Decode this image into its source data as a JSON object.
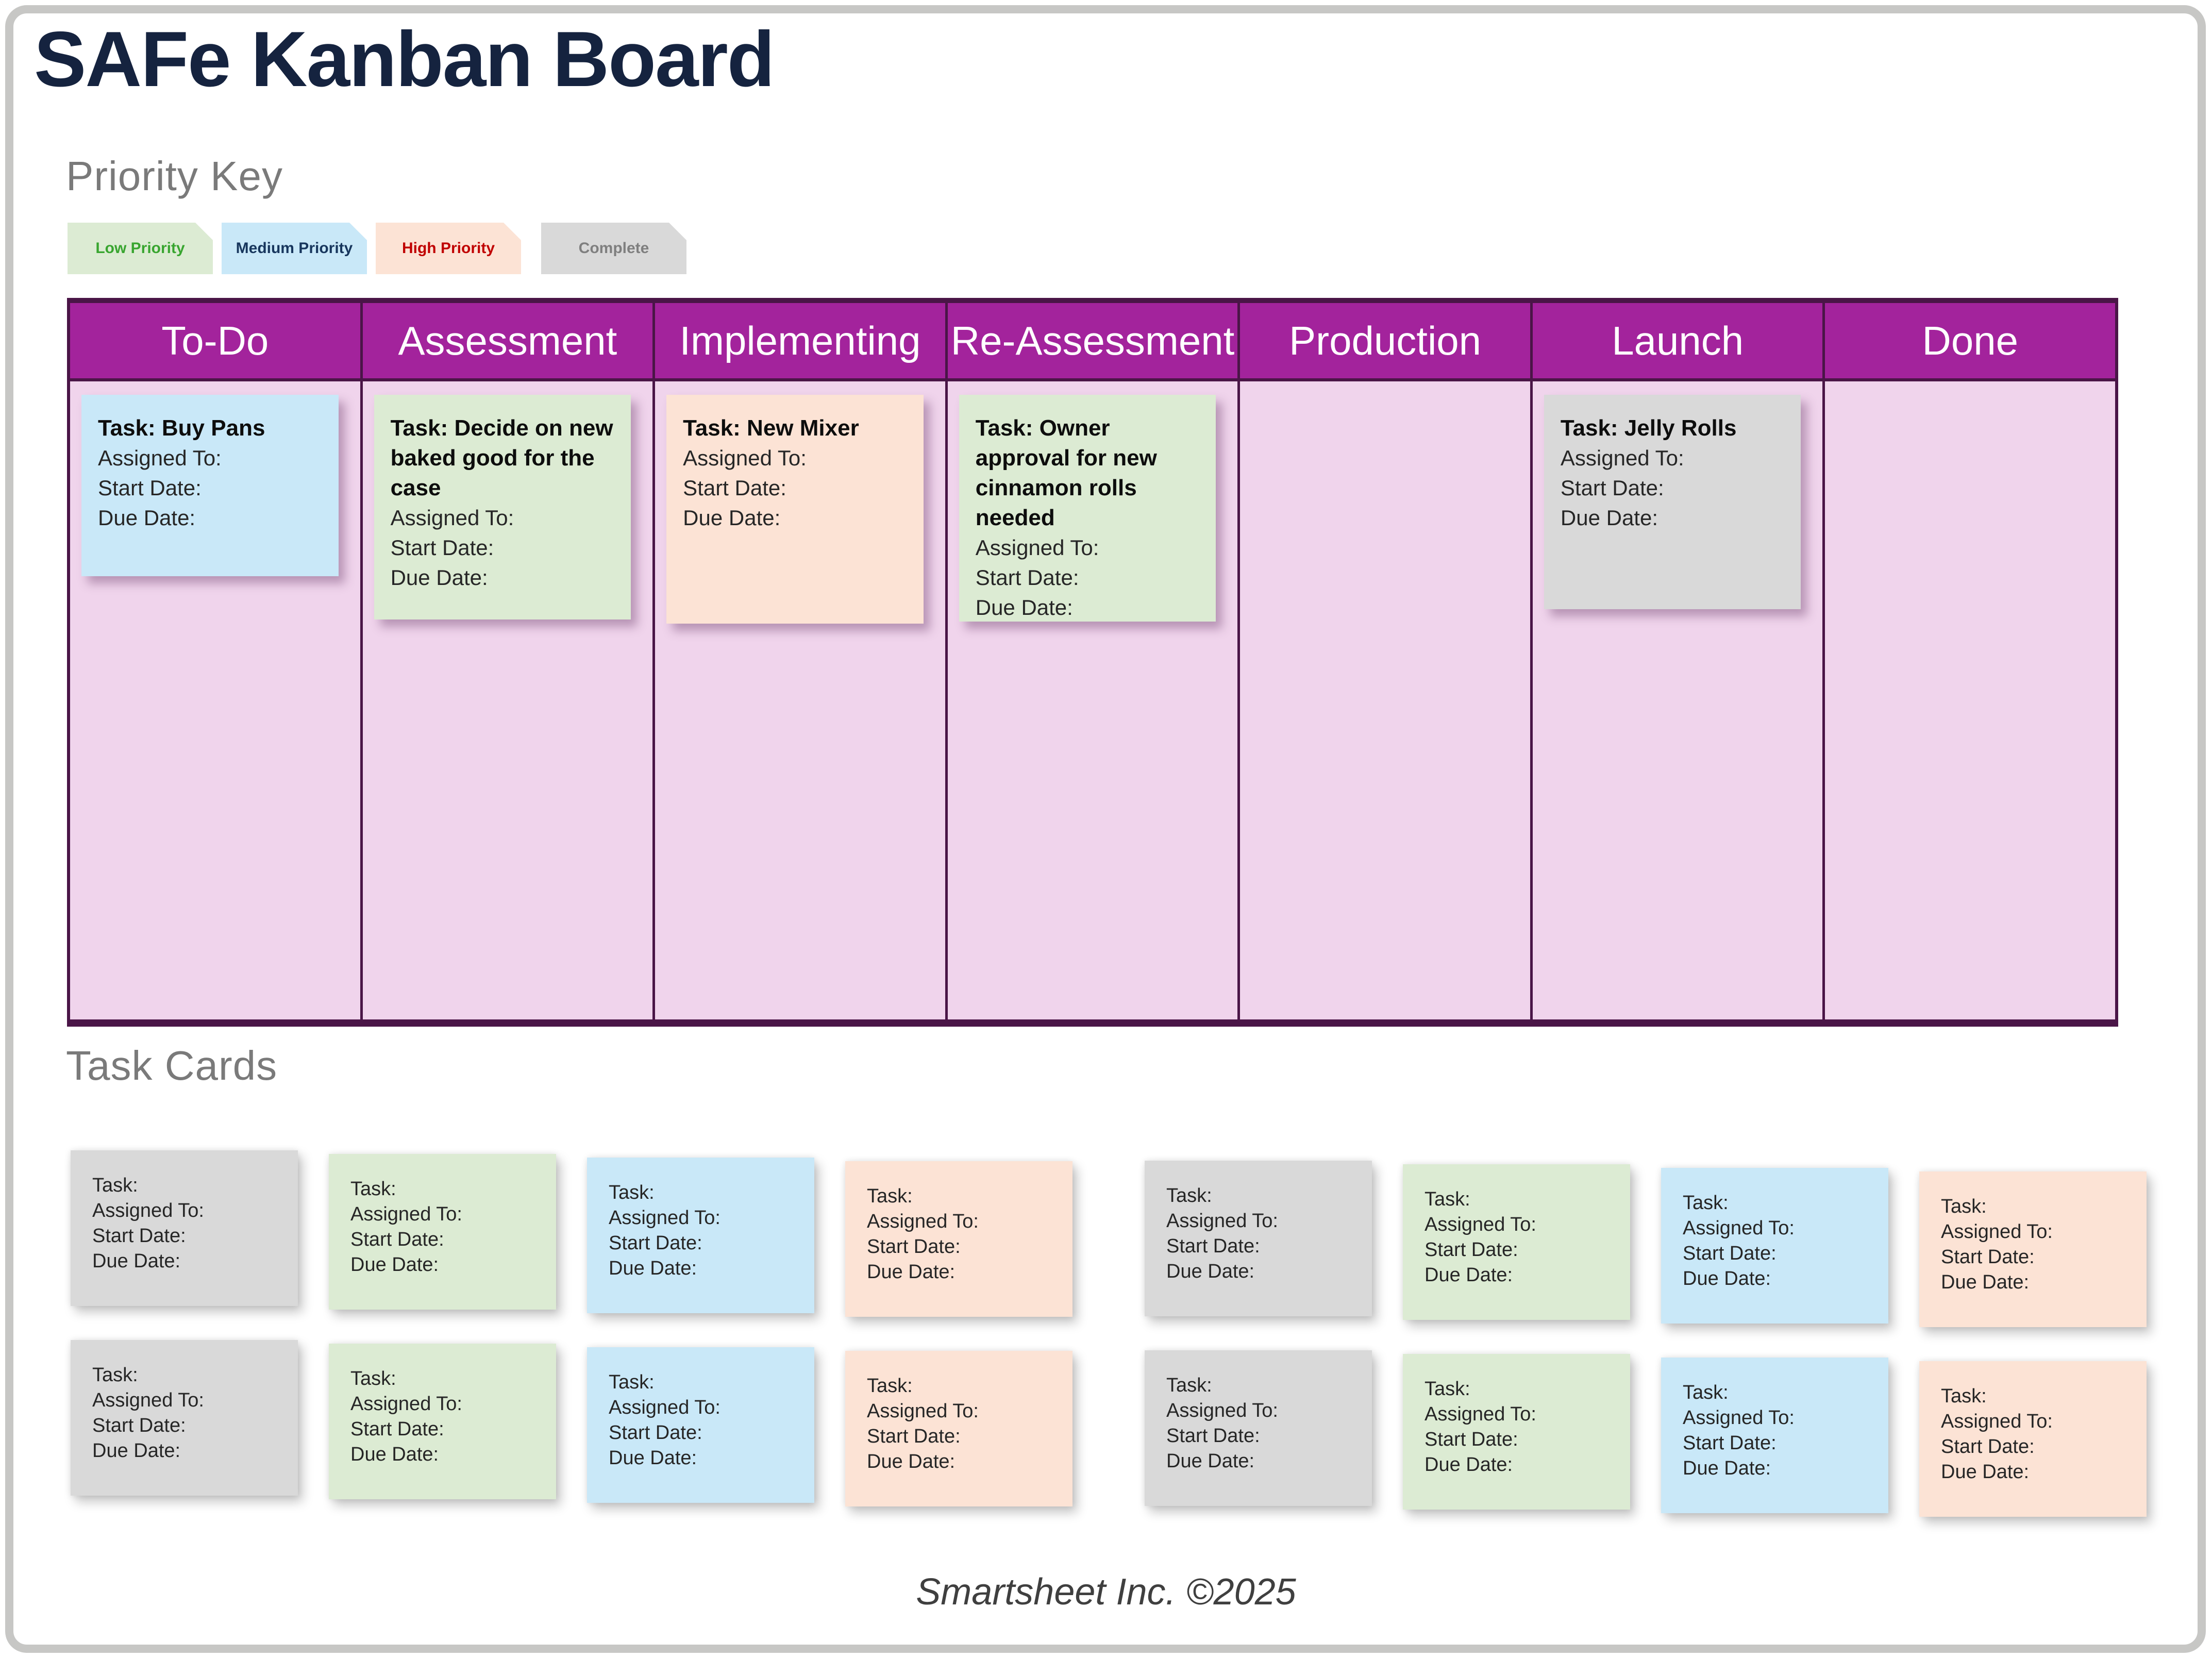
{
  "page": {
    "title": "SAFe Kanban Board",
    "footer": "Smartsheet Inc. ©2025"
  },
  "priority_key": {
    "heading": "Priority Key",
    "items": [
      {
        "label": "Low Priority",
        "priority": "low",
        "bg": "#dcebd3",
        "text_color": "#38a52f"
      },
      {
        "label": "Medium Priority",
        "priority": "medium",
        "bg": "#c9e8f8",
        "text_color": "#17365d"
      },
      {
        "label": "High Priority",
        "priority": "high",
        "bg": "#fce3d5",
        "text_color": "#c00000"
      },
      {
        "label": "Complete",
        "priority": "complete",
        "bg": "#d9d9d9",
        "text_color": "#7f7f7f"
      }
    ]
  },
  "board": {
    "columns": [
      {
        "name": "To-Do",
        "card": {
          "title": "Task: Buy Pans",
          "priority": "medium"
        }
      },
      {
        "name": "Assessment",
        "card": {
          "title": "Task: Decide on new baked good for the case",
          "priority": "low"
        }
      },
      {
        "name": "Implementing",
        "card": {
          "title": "Task: New Mixer",
          "priority": "high"
        }
      },
      {
        "name": "Re-Assessment",
        "card": {
          "title": "Task: Owner approval for new cinnamon rolls needed",
          "priority": "low"
        }
      },
      {
        "name": "Production",
        "card": null
      },
      {
        "name": "Launch",
        "card": {
          "title": "Task: Jelly Rolls",
          "priority": "complete"
        }
      },
      {
        "name": "Done",
        "card": null
      }
    ]
  },
  "card_labels": {
    "task": "Task:",
    "assigned": "Assigned To:",
    "start": "Start Date:",
    "due": "Due Date:"
  },
  "task_cards": {
    "heading": "Task Cards",
    "group_count": 2,
    "rows_per_group": 2,
    "color_order_per_row": [
      "complete",
      "low",
      "medium",
      "high"
    ]
  },
  "palette": {
    "title_navy": "#15233f",
    "heading_gray": "#7a7a7a",
    "header_magenta": "#a3239c",
    "board_border_purple": "#4a1547",
    "column_pink": "#f0d4ec",
    "frame_gray": "#c7c7c5",
    "footer_gray": "#3f3f3f"
  }
}
